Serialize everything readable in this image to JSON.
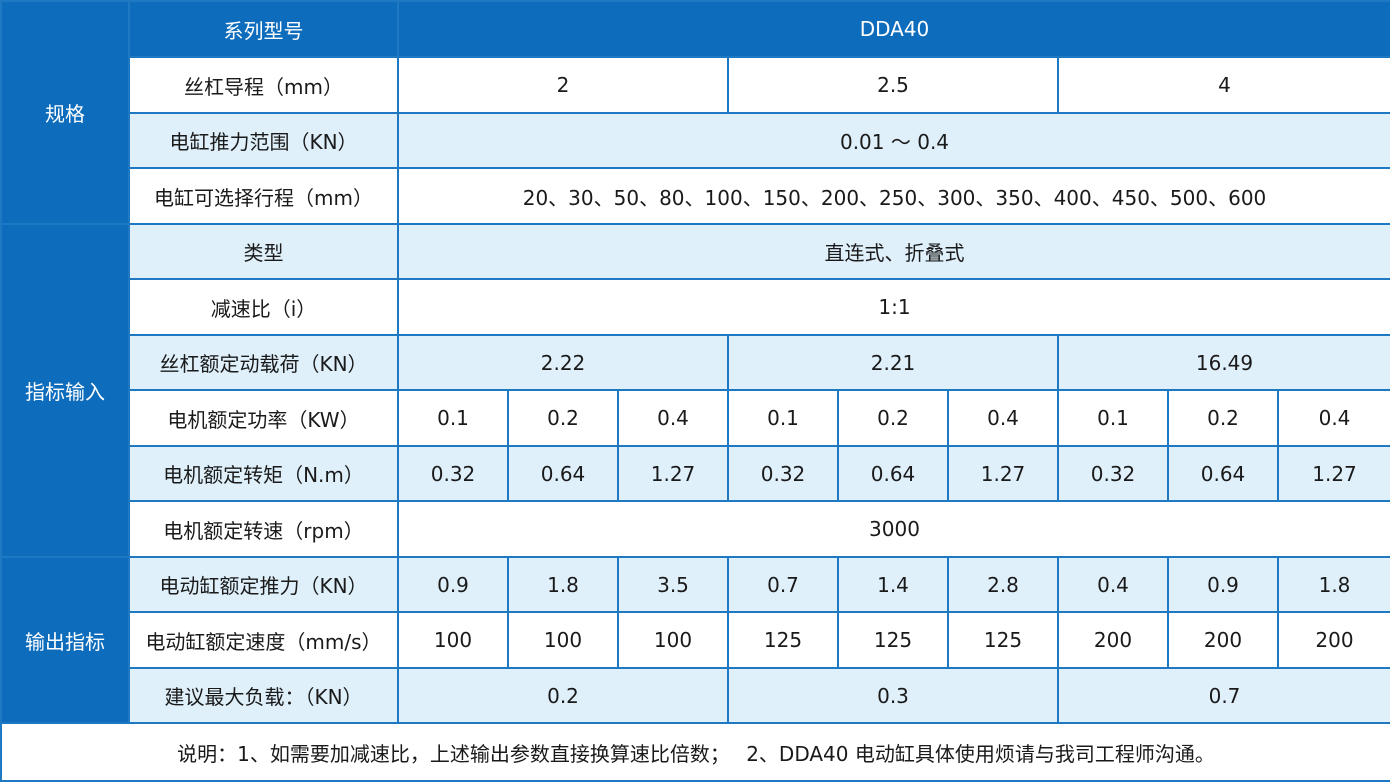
{
  "groups": {
    "spec": "规格",
    "input": "指标输入",
    "output": "输出指标"
  },
  "header": {
    "label": "系列型号",
    "model": "DDA40"
  },
  "rows": {
    "lead": {
      "label": "丝杠导程（mm）",
      "values": [
        "2",
        "2.5",
        "4"
      ]
    },
    "thrust_range": {
      "label": "电缸推力范围（KN）",
      "value": "0.01 ～ 0.4"
    },
    "stroke": {
      "label": "电缸可选择行程（mm）",
      "value": "20、30、50、80、100、150、200、250、300、350、400、450、500、600"
    },
    "type": {
      "label": "类型",
      "value": "直连式、折叠式"
    },
    "ratio": {
      "label": "减速比（i）",
      "value": "1:1"
    },
    "dyn_load": {
      "label": "丝杠额定动载荷（KN）",
      "values": [
        "2.22",
        "2.21",
        "16.49"
      ]
    },
    "power": {
      "label": "电机额定功率（KW）",
      "values": [
        "0.1",
        "0.2",
        "0.4",
        "0.1",
        "0.2",
        "0.4",
        "0.1",
        "0.2",
        "0.4"
      ]
    },
    "torque": {
      "label": "电机额定转矩（N.m）",
      "values": [
        "0.32",
        "0.64",
        "1.27",
        "0.32",
        "0.64",
        "1.27",
        "0.32",
        "0.64",
        "1.27"
      ]
    },
    "speed_rpm": {
      "label": "电机额定转速（rpm）",
      "value": "3000"
    },
    "thrust": {
      "label": "电动缸额定推力（KN）",
      "values": [
        "0.9",
        "1.8",
        "3.5",
        "0.7",
        "1.4",
        "2.8",
        "0.4",
        "0.9",
        "1.8"
      ]
    },
    "velocity": {
      "label": "电动缸额定速度（mm/s）",
      "values": [
        "100",
        "100",
        "100",
        "125",
        "125",
        "125",
        "200",
        "200",
        "200"
      ]
    },
    "max_load": {
      "label": "建议最大负载：（KN）",
      "values": [
        "0.2",
        "0.3",
        "0.7"
      ]
    }
  },
  "note": "说明：1、如需要加减速比，上述输出参数直接换算速比倍数；　 2、DDA40 电动缸具体使用烦请与我司工程师沟通。"
}
